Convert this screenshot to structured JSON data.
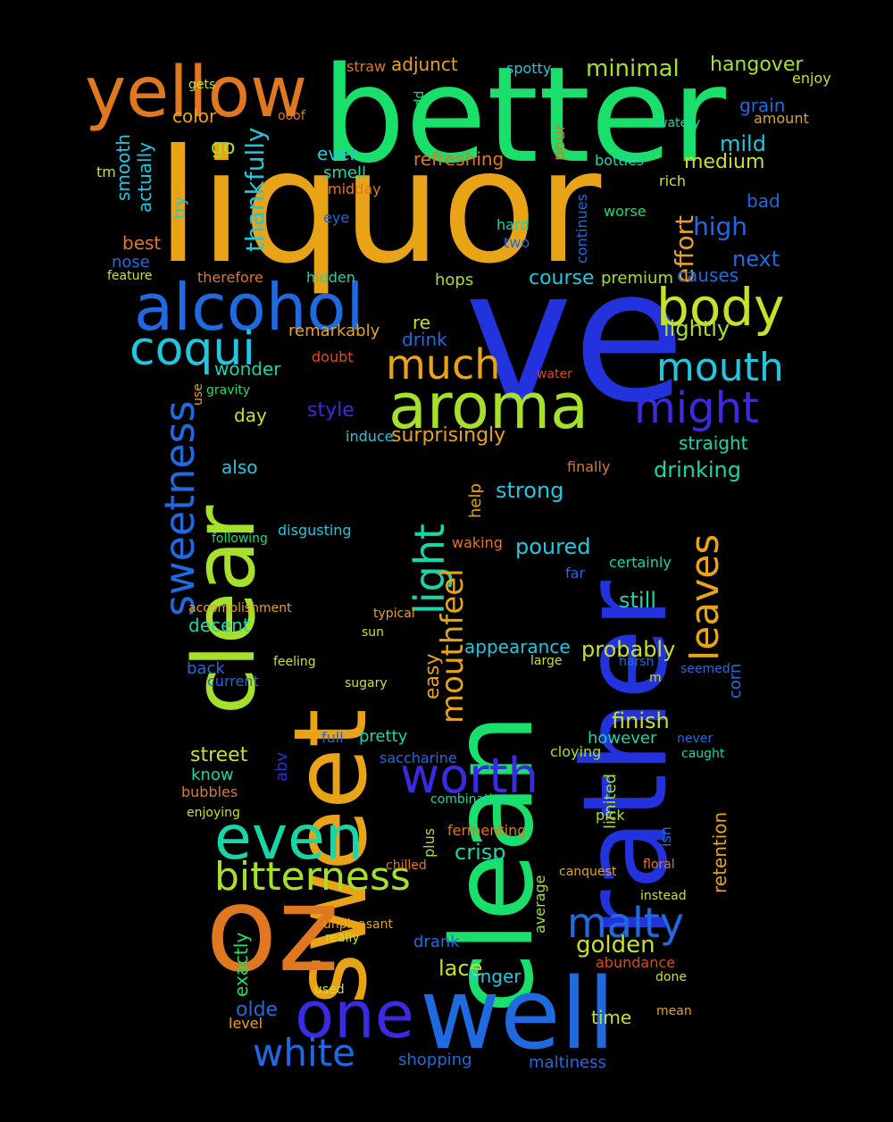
{
  "palette": {
    "gold": "#e8a317",
    "orange": "#e07820",
    "green": "#19e06a",
    "lime": "#a6e02a",
    "blue": "#1f6ae0",
    "deepblue": "#2233dd",
    "cyan": "#1fc8e0",
    "red": "#e0481f",
    "yellowgreen": "#c8e02a",
    "teal": "#19d6a8",
    "indigo": "#3a2ae0"
  },
  "words": [
    {
      "text": "liquor",
      "color": "gold"
    },
    {
      "text": "better",
      "color": "green"
    },
    {
      "text": "yellow",
      "color": "orange"
    },
    {
      "text": "ve",
      "color": "deepblue"
    },
    {
      "text": "clean",
      "color": "green"
    },
    {
      "text": "rather",
      "color": "deepblue"
    },
    {
      "text": "sweet",
      "color": "gold"
    },
    {
      "text": "clear",
      "color": "lime"
    },
    {
      "text": "oz",
      "color": "orange"
    },
    {
      "text": "well",
      "color": "blue"
    },
    {
      "text": "alcohol",
      "color": "blue"
    },
    {
      "text": "aroma",
      "color": "lime"
    },
    {
      "text": "body",
      "color": "yellowgreen"
    },
    {
      "text": "coqui",
      "color": "cyan"
    },
    {
      "text": "mouth",
      "color": "cyan"
    },
    {
      "text": "might",
      "color": "indigo"
    },
    {
      "text": "much",
      "color": "gold"
    },
    {
      "text": "sweetness",
      "color": "blue"
    },
    {
      "text": "light",
      "color": "teal"
    },
    {
      "text": "even",
      "color": "teal"
    },
    {
      "text": "one",
      "color": "indigo"
    },
    {
      "text": "bitterness",
      "color": "lime"
    },
    {
      "text": "worth",
      "color": "indigo"
    },
    {
      "text": "white",
      "color": "blue"
    },
    {
      "text": "malty",
      "color": "blue"
    },
    {
      "text": "leaves",
      "color": "gold"
    },
    {
      "text": "mouthfeel",
      "color": "gold"
    },
    {
      "text": "minimal",
      "color": "lime"
    },
    {
      "text": "hangover",
      "color": "lime"
    },
    {
      "text": "adjunct",
      "color": "gold"
    },
    {
      "text": "grain",
      "color": "blue"
    },
    {
      "text": "mild",
      "color": "cyan"
    },
    {
      "text": "medium",
      "color": "yellowgreen"
    },
    {
      "text": "refreshing",
      "color": "orange"
    },
    {
      "text": "thankfully",
      "color": "cyan"
    },
    {
      "text": "smooth",
      "color": "cyan"
    },
    {
      "text": "actually",
      "color": "cyan"
    },
    {
      "text": "color",
      "color": "gold"
    },
    {
      "text": "high",
      "color": "blue"
    },
    {
      "text": "next",
      "color": "blue"
    },
    {
      "text": "bad",
      "color": "blue"
    },
    {
      "text": "effort",
      "color": "gold"
    },
    {
      "text": "course",
      "color": "cyan"
    },
    {
      "text": "premium",
      "color": "lime"
    },
    {
      "text": "lightly",
      "color": "lime"
    },
    {
      "text": "causes",
      "color": "blue"
    },
    {
      "text": "wonder",
      "color": "teal"
    },
    {
      "text": "remarkably",
      "color": "gold"
    },
    {
      "text": "drink",
      "color": "blue"
    },
    {
      "text": "style",
      "color": "indigo"
    },
    {
      "text": "surprisingly",
      "color": "gold"
    },
    {
      "text": "straight",
      "color": "teal"
    },
    {
      "text": "drinking",
      "color": "teal"
    },
    {
      "text": "strong",
      "color": "cyan"
    },
    {
      "text": "poured",
      "color": "cyan"
    },
    {
      "text": "still",
      "color": "teal"
    },
    {
      "text": "probably",
      "color": "yellowgreen"
    },
    {
      "text": "appearance",
      "color": "cyan"
    },
    {
      "text": "finish",
      "color": "yellowgreen"
    },
    {
      "text": "however",
      "color": "teal"
    },
    {
      "text": "golden",
      "color": "yellowgreen"
    },
    {
      "text": "lace",
      "color": "yellowgreen"
    },
    {
      "text": "finger",
      "color": "cyan"
    },
    {
      "text": "time",
      "color": "yellowgreen"
    },
    {
      "text": "shopping",
      "color": "blue"
    },
    {
      "text": "maltiness",
      "color": "blue"
    },
    {
      "text": "olde",
      "color": "blue"
    },
    {
      "text": "street",
      "color": "yellowgreen"
    },
    {
      "text": "decent",
      "color": "teal"
    },
    {
      "text": "pretty",
      "color": "teal"
    },
    {
      "text": "easy",
      "color": "gold"
    },
    {
      "text": "crisp",
      "color": "teal"
    },
    {
      "text": "retention",
      "color": "gold"
    },
    {
      "text": "exactly",
      "color": "green"
    },
    {
      "text": "day",
      "color": "yellowgreen"
    },
    {
      "text": "also",
      "color": "cyan"
    },
    {
      "text": "best",
      "color": "orange"
    },
    {
      "text": "nose",
      "color": "blue"
    },
    {
      "text": "ever",
      "color": "cyan"
    },
    {
      "text": "smell",
      "color": "teal"
    },
    {
      "text": "go",
      "color": "lime"
    },
    {
      "text": "try",
      "color": "cyan"
    },
    {
      "text": "tm",
      "color": "yellowgreen"
    },
    {
      "text": "eye",
      "color": "blue"
    },
    {
      "text": "hops",
      "color": "lime"
    },
    {
      "text": "re",
      "color": "yellowgreen"
    },
    {
      "text": "worse",
      "color": "green"
    },
    {
      "text": "rich",
      "color": "yellowgreen"
    },
    {
      "text": "pour",
      "color": "orange"
    },
    {
      "text": "bottles",
      "color": "teal"
    },
    {
      "text": "amount",
      "color": "gold"
    },
    {
      "text": "enjoy",
      "color": "yellowgreen"
    },
    {
      "text": "spotty",
      "color": "cyan"
    },
    {
      "text": "straw",
      "color": "orange"
    },
    {
      "text": "odd",
      "color": "green"
    },
    {
      "text": "gets",
      "color": "yellowgreen"
    },
    {
      "text": "ooof",
      "color": "orange"
    },
    {
      "text": "watery",
      "color": "teal"
    },
    {
      "text": "midday",
      "color": "orange"
    },
    {
      "text": "two",
      "color": "blue"
    },
    {
      "text": "hard",
      "color": "teal"
    },
    {
      "text": "continues",
      "color": "blue"
    },
    {
      "text": "therefore",
      "color": "orange"
    },
    {
      "text": "hidden",
      "color": "teal"
    },
    {
      "text": "feature",
      "color": "yellowgreen"
    },
    {
      "text": "doubt",
      "color": "red"
    },
    {
      "text": "gravity",
      "color": "green"
    },
    {
      "text": "use",
      "color": "gold"
    },
    {
      "text": "water",
      "color": "red"
    },
    {
      "text": "induce",
      "color": "cyan"
    },
    {
      "text": "help",
      "color": "gold"
    },
    {
      "text": "finally",
      "color": "orange"
    },
    {
      "text": "certainly",
      "color": "teal"
    },
    {
      "text": "far",
      "color": "blue"
    },
    {
      "text": "waking",
      "color": "orange"
    },
    {
      "text": "disgusting",
      "color": "cyan"
    },
    {
      "text": "following",
      "color": "green"
    },
    {
      "text": "accomplishment",
      "color": "gold"
    },
    {
      "text": "typical",
      "color": "gold"
    },
    {
      "text": "sun",
      "color": "yellowgreen"
    },
    {
      "text": "back",
      "color": "blue"
    },
    {
      "text": "current",
      "color": "blue"
    },
    {
      "text": "feeling",
      "color": "yellowgreen"
    },
    {
      "text": "sugary",
      "color": "yellowgreen"
    },
    {
      "text": "large",
      "color": "yellowgreen"
    },
    {
      "text": "harsh",
      "color": "blue"
    },
    {
      "text": "seemed",
      "color": "blue"
    },
    {
      "text": "corn",
      "color": "blue"
    },
    {
      "text": "never",
      "color": "blue"
    },
    {
      "text": "caught",
      "color": "teal"
    },
    {
      "text": "cloying",
      "color": "lime"
    },
    {
      "text": "saccharine",
      "color": "blue"
    },
    {
      "text": "full",
      "color": "blue"
    },
    {
      "text": "know",
      "color": "teal"
    },
    {
      "text": "abv",
      "color": "deepblue"
    },
    {
      "text": "bubbles",
      "color": "orange"
    },
    {
      "text": "enjoying",
      "color": "yellowgreen"
    },
    {
      "text": "plus",
      "color": "lime"
    },
    {
      "text": "combination",
      "color": "teal"
    },
    {
      "text": "limited",
      "color": "lime"
    },
    {
      "text": "pick",
      "color": "lime"
    },
    {
      "text": "isn",
      "color": "blue"
    },
    {
      "text": "fermenting",
      "color": "orange"
    },
    {
      "text": "average",
      "color": "lime"
    },
    {
      "text": "chilled",
      "color": "orange"
    },
    {
      "text": "canquest",
      "color": "gold"
    },
    {
      "text": "floral",
      "color": "orange"
    },
    {
      "text": "instead",
      "color": "yellowgreen"
    },
    {
      "text": "drank",
      "color": "blue"
    },
    {
      "text": "really",
      "color": "yellowgreen"
    },
    {
      "text": "unpleasant",
      "color": "gold"
    },
    {
      "text": "abundance",
      "color": "red"
    },
    {
      "text": "used",
      "color": "yellowgreen"
    },
    {
      "text": "level",
      "color": "gold"
    },
    {
      "text": "mean",
      "color": "gold"
    },
    {
      "text": "done",
      "color": "yellowgreen"
    },
    {
      "text": "m",
      "color": "yellowgreen"
    }
  ]
}
